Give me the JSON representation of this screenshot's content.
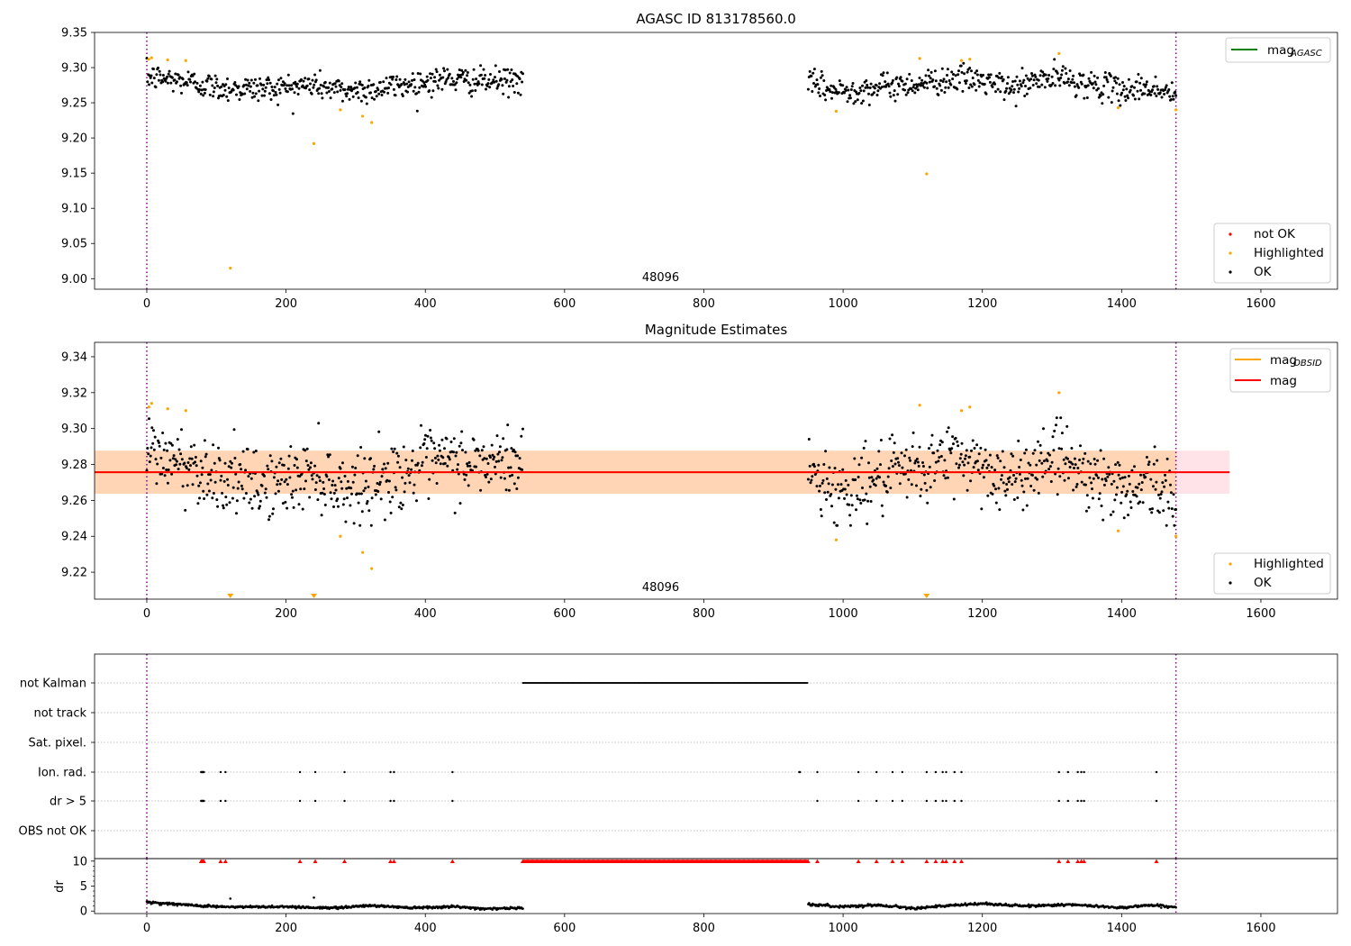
{
  "chart_data": [
    {
      "type": "scatter",
      "title": "AGASC ID 813178560.0",
      "xlim": [
        -75,
        1710
      ],
      "ylim": [
        8.985,
        9.35
      ],
      "xticks": [
        0,
        200,
        400,
        600,
        800,
        1000,
        1200,
        1400,
        1600
      ],
      "yticks": [
        "9.00",
        "9.05",
        "9.10",
        "9.15",
        "9.20",
        "9.25",
        "9.30",
        "9.35"
      ],
      "obsid_label": "48096",
      "obsid_label_x": 738,
      "obsid_boundaries": [
        0,
        1478
      ],
      "legend_lines": [
        {
          "name": "mag_AGASC",
          "label": "mag",
          "sub": "AGASC",
          "color": "#008000"
        }
      ],
      "legend_points": [
        {
          "name": "not OK",
          "label": "not OK",
          "color": "#ff0000"
        },
        {
          "name": "Highlighted",
          "label": "Highlighted",
          "color": "#ffa500"
        },
        {
          "name": "OK",
          "label": "OK",
          "color": "#000000"
        }
      ],
      "series": [
        {
          "name": "OK",
          "color": "#000000",
          "segments": [
            {
              "x0": 0,
              "x1": 540,
              "n": 500,
              "profile": [
                [
                  0,
                  9.287
                ],
                [
                  60,
                  9.28
                ],
                [
                  100,
                  9.272
                ],
                [
                  150,
                  9.27
                ],
                [
                  200,
                  9.272
                ],
                [
                  240,
                  9.276
                ],
                [
                  280,
                  9.267
                ],
                [
                  330,
                  9.27
                ],
                [
                  380,
                  9.277
                ],
                [
                  430,
                  9.284
                ],
                [
                  480,
                  9.28
                ],
                [
                  540,
                  9.282
                ]
              ],
              "sd": 0.0095
            },
            {
              "x0": 950,
              "x1": 1478,
              "n": 470,
              "profile": [
                [
                  950,
                  9.278
                ],
                [
                  990,
                  9.266
                ],
                [
                  1030,
                  9.27
                ],
                [
                  1080,
                  9.275
                ],
                [
                  1130,
                  9.28
                ],
                [
                  1160,
                  9.285
                ],
                [
                  1200,
                  9.281
                ],
                [
                  1240,
                  9.27
                ],
                [
                  1280,
                  9.282
                ],
                [
                  1310,
                  9.286
                ],
                [
                  1350,
                  9.277
                ],
                [
                  1400,
                  9.268
                ],
                [
                  1440,
                  9.272
                ],
                [
                  1478,
                  9.26
                ]
              ],
              "sd": 0.0095
            }
          ]
        },
        {
          "name": "Highlighted",
          "color": "#ffa500",
          "points": [
            [
              3,
              9.312
            ],
            [
              7,
              9.314
            ],
            [
              30,
              9.311
            ],
            [
              56,
              9.31
            ],
            [
              120,
              9.015
            ],
            [
              240,
              9.192
            ],
            [
              278,
              9.24
            ],
            [
              310,
              9.231
            ],
            [
              323,
              9.222
            ],
            [
              990,
              9.238
            ],
            [
              1110,
              9.313
            ],
            [
              1120,
              9.149
            ],
            [
              1170,
              9.31
            ],
            [
              1182,
              9.312
            ],
            [
              1310,
              9.32
            ],
            [
              1395,
              9.243
            ],
            [
              1478,
              9.24
            ]
          ]
        }
      ]
    },
    {
      "type": "scatter",
      "title": "Magnitude Estimates",
      "xlim": [
        -75,
        1710
      ],
      "ylim": [
        9.205,
        9.348
      ],
      "xticks": [
        0,
        200,
        400,
        600,
        800,
        1000,
        1200,
        1400,
        1600
      ],
      "yticks": [
        "9.22",
        "9.24",
        "9.26",
        "9.28",
        "9.30",
        "9.32",
        "9.34"
      ],
      "obsid_label": "48096",
      "obsid_label_x": 738,
      "obsid_boundaries": [
        0,
        1478
      ],
      "mag": 9.2757,
      "mag_band": [
        9.2637,
        9.2877
      ],
      "mag_band_xrange": [
        -75,
        1555
      ],
      "obsid_mag": 9.2757,
      "obsid_band": [
        9.2637,
        9.2877
      ],
      "obsid_xrange": [
        -75,
        1478
      ],
      "legend_lines": [
        {
          "name": "mag_OBSID",
          "label": "mag",
          "sub": "OBSID",
          "color": "#ffa500"
        },
        {
          "name": "mag",
          "label": "mag",
          "sub": "",
          "color": "#ff0000"
        }
      ],
      "legend_points": [
        {
          "name": "Highlighted",
          "label": "Highlighted",
          "color": "#ffa500"
        },
        {
          "name": "OK",
          "label": "OK",
          "color": "#000000"
        }
      ],
      "series": [
        {
          "name": "OK",
          "color": "#000000",
          "segments": [
            {
              "x0": 0,
              "x1": 540,
              "n": 500,
              "profile": [
                [
                  0,
                  9.287
                ],
                [
                  60,
                  9.28
                ],
                [
                  100,
                  9.274
                ],
                [
                  150,
                  9.268
                ],
                [
                  200,
                  9.27
                ],
                [
                  240,
                  9.276
                ],
                [
                  280,
                  9.267
                ],
                [
                  330,
                  9.27
                ],
                [
                  380,
                  9.277
                ],
                [
                  430,
                  9.282
                ],
                [
                  480,
                  9.28
                ],
                [
                  540,
                  9.282
                ]
              ],
              "sd": 0.0095
            },
            {
              "x0": 950,
              "x1": 1478,
              "n": 470,
              "profile": [
                [
                  950,
                  9.278
                ],
                [
                  990,
                  9.264
                ],
                [
                  1030,
                  9.27
                ],
                [
                  1080,
                  9.274
                ],
                [
                  1130,
                  9.28
                ],
                [
                  1160,
                  9.285
                ],
                [
                  1200,
                  9.28
                ],
                [
                  1240,
                  9.268
                ],
                [
                  1280,
                  9.282
                ],
                [
                  1310,
                  9.287
                ],
                [
                  1350,
                  9.275
                ],
                [
                  1400,
                  9.266
                ],
                [
                  1440,
                  9.272
                ],
                [
                  1478,
                  9.256
                ]
              ],
              "sd": 0.0095
            }
          ]
        },
        {
          "name": "Highlighted",
          "color": "#ffa500",
          "points": [
            [
              3,
              9.312
            ],
            [
              7,
              9.314
            ],
            [
              30,
              9.311
            ],
            [
              56,
              9.31
            ],
            [
              278,
              9.24
            ],
            [
              310,
              9.231
            ],
            [
              323,
              9.222
            ],
            [
              990,
              9.238
            ],
            [
              1110,
              9.313
            ],
            [
              1170,
              9.31
            ],
            [
              1182,
              9.312
            ],
            [
              1310,
              9.32
            ],
            [
              1395,
              9.243
            ],
            [
              1478,
              9.24
            ]
          ]
        },
        {
          "name": "Highlighted (off scale)",
          "color": "#ffa500",
          "marker": "triangle-down",
          "points": [
            [
              120,
              9.207
            ],
            [
              240,
              9.207
            ],
            [
              1120,
              9.207
            ]
          ]
        }
      ]
    },
    {
      "type": "scatter",
      "title": "",
      "xlim": [
        -75,
        1710
      ],
      "ylim": [
        0,
        7.5
      ],
      "obsid_boundaries": [
        0,
        1478
      ],
      "flag_rows": [
        "not Kalman",
        "not track",
        "Sat. pixel.",
        "Ion. rad.",
        "dr > 5",
        "OBS not OK"
      ],
      "flags": {
        "not Kalman": {
          "ranges": [
            [
              540,
              950
            ]
          ],
          "points": []
        },
        "not track": {
          "ranges": [],
          "points": []
        },
        "Sat. pixel.": {
          "ranges": [],
          "points": []
        },
        "Ion. rad.": {
          "ranges": [],
          "points": [
            78,
            79,
            80,
            81,
            82,
            106,
            113,
            220,
            242,
            284,
            350,
            355,
            439,
            937,
            938,
            963,
            1022,
            1048,
            1071,
            1085,
            1120,
            1133,
            1143,
            1148,
            1160,
            1170,
            1310,
            1323,
            1337,
            1342,
            1346,
            1450
          ]
        },
        "dr > 5": {
          "ranges": [],
          "points": [
            78,
            79,
            80,
            81,
            82,
            106,
            113,
            220,
            242,
            284,
            350,
            355,
            439,
            963,
            1022,
            1048,
            1071,
            1085,
            1120,
            1133,
            1143,
            1148,
            1160,
            1170,
            1310,
            1323,
            1337,
            1342,
            1346,
            1450
          ]
        },
        "OBS not OK": {
          "ranges": [],
          "points": []
        }
      }
    },
    {
      "type": "scatter",
      "title": "",
      "ylabel": "dr",
      "xlim": [
        -75,
        1710
      ],
      "ylim": [
        -0.5,
        10.5
      ],
      "xticks": [
        0,
        200,
        400,
        600,
        800,
        1000,
        1200,
        1400,
        1600
      ],
      "yticks": [
        "0",
        "5",
        "10"
      ],
      "obsid_boundaries": [
        0,
        1478
      ],
      "dr_clipped_value": 10,
      "dr_clipped_points": [
        78,
        79,
        80,
        81,
        82,
        106,
        113,
        220,
        242,
        284,
        350,
        355,
        439,
        963,
        1022,
        1048,
        1071,
        1085,
        1120,
        1133,
        1143,
        1148,
        1160,
        1170,
        1310,
        1323,
        1337,
        1342,
        1346,
        1450
      ],
      "dr_clipped_ranges": [
        [
          540,
          950
        ]
      ],
      "series": [
        {
          "name": "dr",
          "color": "#000000",
          "segments": [
            {
              "x0": 0,
              "x1": 540,
              "n": 520,
              "profile": [
                [
                  0,
                  1.8
                ],
                [
                  60,
                  1.2
                ],
                [
                  120,
                  0.8
                ],
                [
                  200,
                  0.9
                ],
                [
                  260,
                  0.6
                ],
                [
                  320,
                  1.1
                ],
                [
                  380,
                  0.7
                ],
                [
                  440,
                  0.9
                ],
                [
                  480,
                  0.5
                ],
                [
                  540,
                  0.6
                ]
              ],
              "sd": 0.12
            },
            {
              "x0": 950,
              "x1": 1478,
              "n": 500,
              "profile": [
                [
                  950,
                  1.4
                ],
                [
                  990,
                  0.9
                ],
                [
                  1050,
                  1.2
                ],
                [
                  1100,
                  0.6
                ],
                [
                  1200,
                  1.5
                ],
                [
                  1260,
                  1.0
                ],
                [
                  1320,
                  1.3
                ],
                [
                  1400,
                  0.7
                ],
                [
                  1440,
                  1.2
                ],
                [
                  1478,
                  0.8
                ]
              ],
              "sd": 0.12
            }
          ]
        },
        {
          "name": "dr outliers",
          "color": "#000000",
          "points": [
            [
              120,
              2.5
            ],
            [
              240,
              2.7
            ]
          ]
        }
      ]
    }
  ]
}
